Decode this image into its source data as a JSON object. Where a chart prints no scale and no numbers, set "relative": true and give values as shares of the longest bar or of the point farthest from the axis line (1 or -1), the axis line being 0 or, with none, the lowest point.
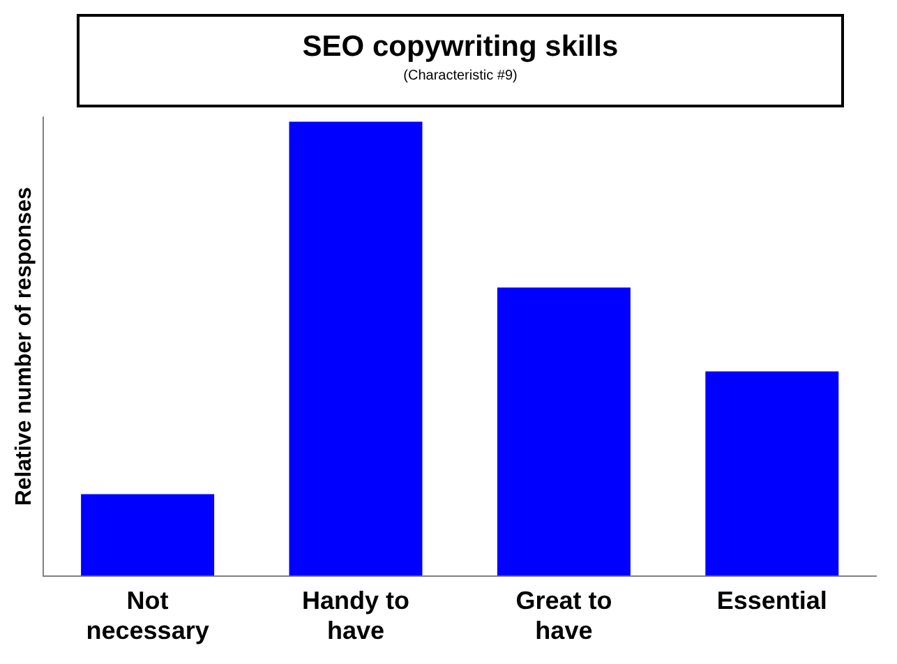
{
  "chart_data": {
    "type": "bar",
    "title": "SEO copywriting skills",
    "subtitle": "(Characteristic #9)",
    "ylabel": "Relative number of responses",
    "relative": true,
    "categories": [
      "Not necessary",
      "Handy to have",
      "Great to have",
      "Essential"
    ],
    "values": [
      0.18,
      1,
      0.635,
      0.45
    ],
    "color": "#0000ff",
    "grid": false,
    "legend": false
  }
}
